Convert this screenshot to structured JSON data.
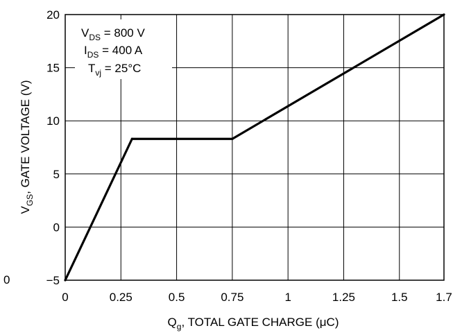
{
  "chart_data": {
    "type": "line",
    "x": [
      0,
      0.3,
      0.75,
      1.7
    ],
    "series": [
      {
        "values": [
          -5,
          8.3,
          8.3,
          20
        ]
      }
    ],
    "xlim": [
      0,
      1.7
    ],
    "ylim": [
      -5,
      20
    ],
    "xticks": [
      0,
      0.25,
      0.5,
      0.75,
      1,
      1.25,
      1.5,
      1.7
    ],
    "yticks": [
      -5,
      0,
      5,
      10,
      15,
      20
    ],
    "xtick_labels": [
      "0",
      "0.25",
      "0.5",
      "0.75",
      "1",
      "1.25",
      "1.5",
      "1.7"
    ],
    "ytick_labels": [
      "−5",
      "0",
      "5",
      "10",
      "15",
      "20"
    ],
    "stray_label": "0",
    "xlabel": {
      "main": "Q",
      "sub": "g",
      "rest": ", TOTAL GATE CHARGE (μC)"
    },
    "ylabel": {
      "main": "V",
      "sub": "GS",
      "rest": ", GATE VOLTAGE (V)"
    },
    "annotation": [
      {
        "main": "V",
        "sub": "DS",
        "rest": " = 800 V"
      },
      {
        "main": "I",
        "sub": "DS",
        "rest": " = 400 A"
      },
      {
        "main": "T",
        "sub": "vj",
        "rest": " = 25°C"
      }
    ],
    "grid": true,
    "line_color": "#000000"
  }
}
